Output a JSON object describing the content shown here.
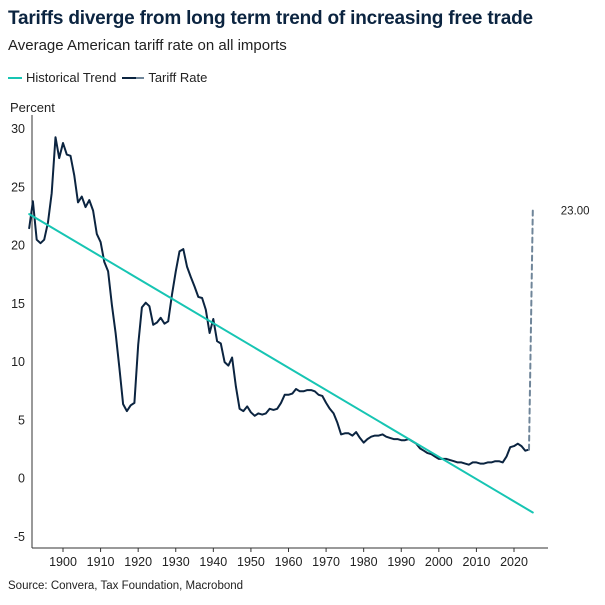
{
  "colors": {
    "trend": "#17c5b3",
    "tariff": "#0b2440",
    "projection": "#6f8599"
  },
  "chart_data": {
    "type": "line",
    "title": "Tariffs diverge from long term trend of increasing free trade",
    "subtitle": "Average American tariff rate on all imports",
    "ylabel": "Percent",
    "xlabel": "",
    "source": "Source: Convera, Tax Foundation, Macrobond",
    "xlim": [
      1891,
      2029
    ],
    "ylim": [
      -6,
      31
    ],
    "x_ticks": [
      1900,
      1910,
      1920,
      1930,
      1940,
      1950,
      1960,
      1970,
      1980,
      1990,
      2000,
      2010,
      2020
    ],
    "y_ticks": [
      -5,
      0,
      5,
      10,
      15,
      20,
      25,
      30
    ],
    "legend": [
      "Historical Trend",
      "Tariff Rate"
    ],
    "annotation": {
      "x": 2025,
      "y": 23.0,
      "label": "23.00"
    },
    "series": [
      {
        "name": "Tariff Rate",
        "x": [
          1891,
          1892,
          1893,
          1894,
          1895,
          1896,
          1897,
          1898,
          1899,
          1900,
          1901,
          1902,
          1903,
          1904,
          1905,
          1906,
          1907,
          1908,
          1909,
          1910,
          1911,
          1912,
          1913,
          1914,
          1915,
          1916,
          1917,
          1918,
          1919,
          1920,
          1921,
          1922,
          1923,
          1924,
          1925,
          1926,
          1927,
          1928,
          1929,
          1930,
          1931,
          1932,
          1933,
          1934,
          1935,
          1936,
          1937,
          1938,
          1939,
          1940,
          1941,
          1942,
          1943,
          1944,
          1945,
          1946,
          1947,
          1948,
          1949,
          1950,
          1951,
          1952,
          1953,
          1954,
          1955,
          1956,
          1957,
          1958,
          1959,
          1960,
          1961,
          1962,
          1963,
          1964,
          1965,
          1966,
          1967,
          1968,
          1969,
          1970,
          1971,
          1972,
          1973,
          1974,
          1975,
          1976,
          1977,
          1978,
          1979,
          1980,
          1981,
          1982,
          1983,
          1984,
          1985,
          1986,
          1987,
          1988,
          1989,
          1990,
          1991,
          1992,
          1993,
          1994,
          1995,
          1996,
          1997,
          1998,
          1999,
          2000,
          2001,
          2002,
          2003,
          2004,
          2005,
          2006,
          2007,
          2008,
          2009,
          2010,
          2011,
          2012,
          2013,
          2014,
          2015,
          2016,
          2017,
          2018,
          2019,
          2020,
          2021,
          2022,
          2023,
          2024
        ],
        "values": [
          21.5,
          23.8,
          20.5,
          20.2,
          20.5,
          22.0,
          24.5,
          29.3,
          27.5,
          28.8,
          27.8,
          27.7,
          26.0,
          23.7,
          24.2,
          23.3,
          23.9,
          23.0,
          21.0,
          20.3,
          18.6,
          17.8,
          14.9,
          12.5,
          9.5,
          6.4,
          5.8,
          6.3,
          6.5,
          11.5,
          14.7,
          15.1,
          14.8,
          13.2,
          13.4,
          13.8,
          13.3,
          13.5,
          15.8,
          17.8,
          19.5,
          19.7,
          18.2,
          17.3,
          16.5,
          15.6,
          15.5,
          14.5,
          12.5,
          13.7,
          11.8,
          11.6,
          10.0,
          9.7,
          10.4,
          7.9,
          6.0,
          5.8,
          6.2,
          5.7,
          5.4,
          5.6,
          5.5,
          5.6,
          6.0,
          5.9,
          6.0,
          6.5,
          7.2,
          7.2,
          7.3,
          7.7,
          7.5,
          7.5,
          7.6,
          7.6,
          7.5,
          7.2,
          7.1,
          6.5,
          6.0,
          5.6,
          4.8,
          3.8,
          3.9,
          3.9,
          3.7,
          4.0,
          3.5,
          3.1,
          3.4,
          3.6,
          3.7,
          3.7,
          3.8,
          3.6,
          3.5,
          3.4,
          3.4,
          3.3,
          3.3,
          3.4,
          3.2,
          3.0,
          2.6,
          2.4,
          2.2,
          2.1,
          1.9,
          1.7,
          1.7,
          1.7,
          1.6,
          1.5,
          1.4,
          1.4,
          1.3,
          1.2,
          1.4,
          1.4,
          1.3,
          1.3,
          1.4,
          1.4,
          1.5,
          1.5,
          1.4,
          1.9,
          2.7,
          2.8,
          3.0,
          2.8,
          2.4,
          2.5
        ]
      },
      {
        "name": "Tariff Rate (projection)",
        "x": [
          2024,
          2025
        ],
        "values": [
          2.5,
          23.0
        ]
      },
      {
        "name": "Historical Trend",
        "x": [
          1891,
          2025
        ],
        "values": [
          22.7,
          -2.9
        ]
      }
    ]
  }
}
